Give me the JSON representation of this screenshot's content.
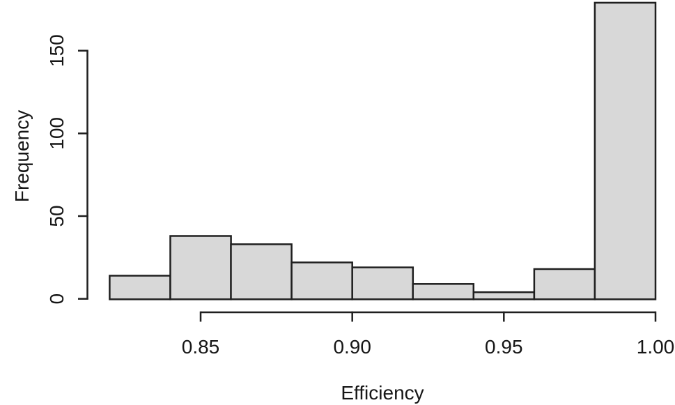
{
  "chart_data": {
    "type": "bar",
    "subtype": "histogram",
    "title": "",
    "xlabel": "Efficiency",
    "ylabel": "Frequency",
    "bin_edges": [
      0.82,
      0.84,
      0.86,
      0.88,
      0.9,
      0.92,
      0.94,
      0.96,
      0.98,
      1.0
    ],
    "counts": [
      14,
      38,
      33,
      22,
      19,
      9,
      4,
      18,
      179
    ],
    "x_ticks": [
      {
        "value": 0.85,
        "label": "0.85"
      },
      {
        "value": 0.9,
        "label": "0.90"
      },
      {
        "value": 0.95,
        "label": "0.95"
      },
      {
        "value": 1.0,
        "label": "1.00"
      }
    ],
    "y_ticks": [
      {
        "value": 0,
        "label": "0"
      },
      {
        "value": 50,
        "label": "50"
      },
      {
        "value": 100,
        "label": "100"
      },
      {
        "value": 150,
        "label": "150"
      }
    ],
    "xlim": [
      0.82,
      1.0
    ],
    "ylim": [
      0,
      180
    ],
    "grid": false,
    "legend": null,
    "colors": {
      "bar_fill": "#d8d8d8",
      "bar_stroke": "#1f1f1f",
      "axis": "#1f1f1f",
      "text": "#161616",
      "background": "#ffffff"
    }
  }
}
